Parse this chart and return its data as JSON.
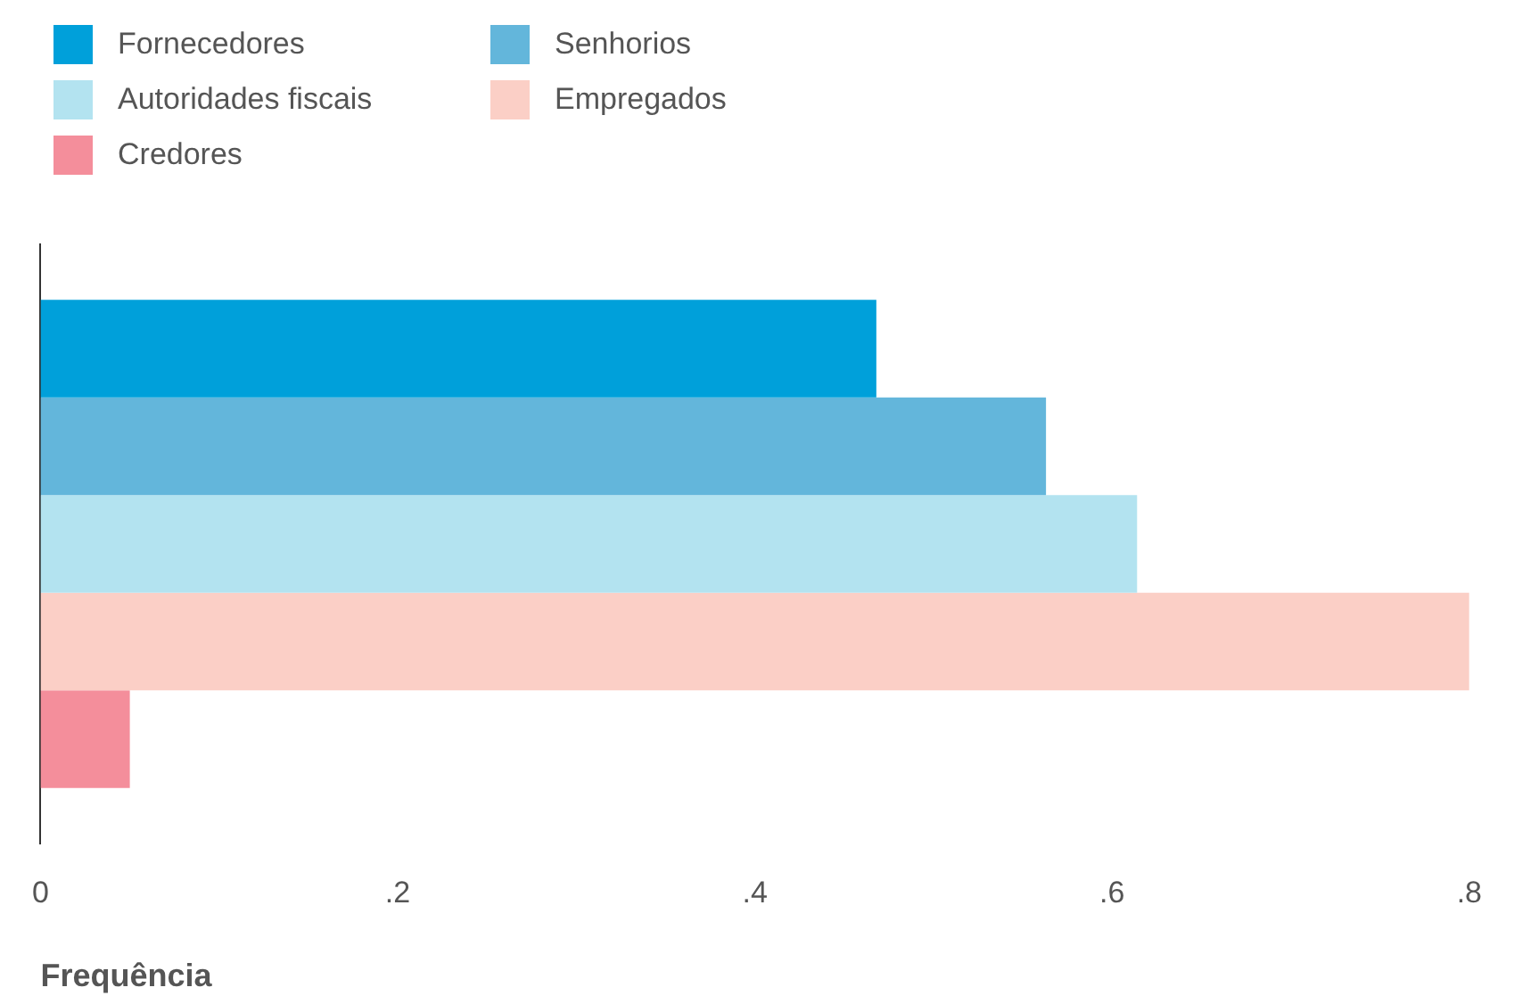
{
  "chart_data": {
    "type": "bar",
    "orientation": "horizontal",
    "xlabel": "Frequência",
    "categories": [
      null
    ],
    "series": [
      {
        "name": "Fornecedores",
        "color": "#00a0da",
        "values": [
          0.468
        ]
      },
      {
        "name": "Senhorios",
        "color": "#63b6db",
        "values": [
          0.563
        ]
      },
      {
        "name": "Autoridades fiscais",
        "color": "#b3e3f0",
        "values": [
          0.614
        ]
      },
      {
        "name": "Empregados",
        "color": "#fbcfc6",
        "values": [
          0.8
        ]
      },
      {
        "name": "Credores",
        "color": "#f48e9b",
        "values": [
          0.05
        ]
      }
    ],
    "xlim": [
      0,
      0.8
    ],
    "xticks": [
      0,
      {
        "value": 0.2,
        "label": ".2"
      },
      {
        "value": 0.4,
        "label": ".4"
      },
      {
        "value": 0.6,
        "label": ".6"
      },
      {
        "value": 0.8,
        "label": ".8"
      }
    ],
    "grid": false,
    "legend": "top left"
  }
}
